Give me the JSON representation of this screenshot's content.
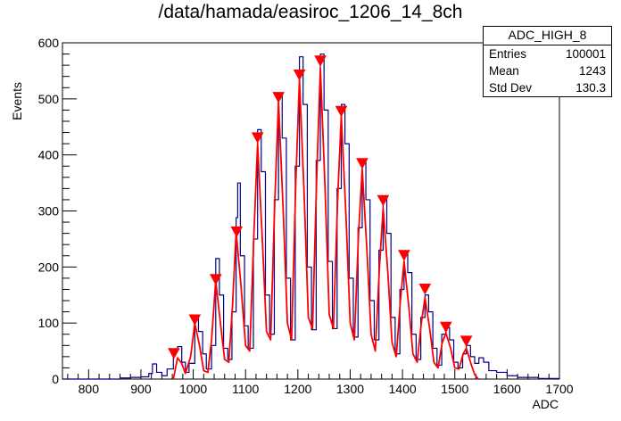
{
  "title": "/data/hamada/easiroc_1206_14_8ch",
  "stats_box": {
    "name": "ADC_HIGH_8",
    "rows": [
      {
        "label": "Entries",
        "value": "100001"
      },
      {
        "label": "Mean",
        "value": "1243"
      },
      {
        "label": "Std Dev",
        "value": "130.3"
      }
    ]
  },
  "chart_data": {
    "type": "line",
    "title": "/data/hamada/easiroc_1206_14_8ch",
    "xlabel": "ADC",
    "ylabel": "Events",
    "xlim": [
      750,
      1700
    ],
    "ylim": [
      0,
      600
    ],
    "x_ticks": [
      800,
      900,
      1000,
      1100,
      1200,
      1300,
      1400,
      1500,
      1600,
      1700
    ],
    "y_ticks": [
      0,
      100,
      200,
      300,
      400,
      500,
      600
    ],
    "legend": "none",
    "grid": false,
    "colors": {
      "histogram": "#000080",
      "fit": "#ff0000",
      "markers": "#ff0000"
    },
    "series": [
      {
        "type": "step",
        "color": "#000080",
        "points": [
          [
            750,
            0
          ],
          [
            840,
            0
          ],
          [
            860,
            2
          ],
          [
            880,
            3
          ],
          [
            900,
            4
          ],
          [
            915,
            10
          ],
          [
            922,
            27
          ],
          [
            930,
            12
          ],
          [
            940,
            6
          ],
          [
            950,
            18
          ],
          [
            962,
            50
          ],
          [
            970,
            58
          ],
          [
            978,
            30
          ],
          [
            985,
            12
          ],
          [
            992,
            28
          ],
          [
            1003,
            110
          ],
          [
            1010,
            85
          ],
          [
            1018,
            45
          ],
          [
            1025,
            18
          ],
          [
            1035,
            60
          ],
          [
            1043,
            215
          ],
          [
            1050,
            150
          ],
          [
            1058,
            55
          ],
          [
            1066,
            35
          ],
          [
            1074,
            120
          ],
          [
            1082,
            288
          ],
          [
            1085,
            350
          ],
          [
            1090,
            220
          ],
          [
            1098,
            95
          ],
          [
            1105,
            55
          ],
          [
            1115,
            250
          ],
          [
            1123,
            445
          ],
          [
            1130,
            370
          ],
          [
            1138,
            150
          ],
          [
            1146,
            80
          ],
          [
            1155,
            320
          ],
          [
            1163,
            510
          ],
          [
            1170,
            430
          ],
          [
            1178,
            180
          ],
          [
            1186,
            70
          ],
          [
            1195,
            380
          ],
          [
            1203,
            575
          ],
          [
            1210,
            490
          ],
          [
            1218,
            200
          ],
          [
            1226,
            88
          ],
          [
            1235,
            390
          ],
          [
            1243,
            580
          ],
          [
            1250,
            480
          ],
          [
            1258,
            210
          ],
          [
            1266,
            90
          ],
          [
            1275,
            340
          ],
          [
            1283,
            490
          ],
          [
            1290,
            420
          ],
          [
            1298,
            180
          ],
          [
            1306,
            75
          ],
          [
            1315,
            270
          ],
          [
            1323,
            390
          ],
          [
            1330,
            320
          ],
          [
            1338,
            140
          ],
          [
            1346,
            70
          ],
          [
            1355,
            230
          ],
          [
            1363,
            325
          ],
          [
            1370,
            260
          ],
          [
            1378,
            110
          ],
          [
            1386,
            45
          ],
          [
            1395,
            160
          ],
          [
            1403,
            225
          ],
          [
            1410,
            190
          ],
          [
            1418,
            80
          ],
          [
            1426,
            35
          ],
          [
            1435,
            110
          ],
          [
            1443,
            150
          ],
          [
            1450,
            120
          ],
          [
            1458,
            55
          ],
          [
            1466,
            25
          ],
          [
            1475,
            80
          ],
          [
            1483,
            92
          ],
          [
            1490,
            70
          ],
          [
            1498,
            30
          ],
          [
            1506,
            20
          ],
          [
            1515,
            45
          ],
          [
            1522,
            60
          ],
          [
            1530,
            40
          ],
          [
            1538,
            28
          ],
          [
            1546,
            38
          ],
          [
            1555,
            30
          ],
          [
            1565,
            15
          ],
          [
            1580,
            12
          ],
          [
            1600,
            6
          ],
          [
            1620,
            3
          ],
          [
            1660,
            1
          ],
          [
            1700,
            0
          ]
        ]
      },
      {
        "type": "line",
        "color": "#ff0000",
        "points": [
          [
            962,
            0
          ],
          [
            970,
            38
          ],
          [
            978,
            28
          ],
          [
            985,
            10
          ],
          [
            995,
            40
          ],
          [
            1003,
            100
          ],
          [
            1012,
            60
          ],
          [
            1020,
            15
          ],
          [
            1028,
            12
          ],
          [
            1035,
            70
          ],
          [
            1043,
            175
          ],
          [
            1052,
            100
          ],
          [
            1060,
            35
          ],
          [
            1068,
            30
          ],
          [
            1075,
            130
          ],
          [
            1082,
            262
          ],
          [
            1091,
            170
          ],
          [
            1100,
            60
          ],
          [
            1108,
            50
          ],
          [
            1116,
            260
          ],
          [
            1123,
            420
          ],
          [
            1132,
            250
          ],
          [
            1140,
            85
          ],
          [
            1148,
            70
          ],
          [
            1156,
            320
          ],
          [
            1163,
            495
          ],
          [
            1172,
            300
          ],
          [
            1180,
            100
          ],
          [
            1188,
            70
          ],
          [
            1196,
            350
          ],
          [
            1203,
            535
          ],
          [
            1212,
            330
          ],
          [
            1220,
            110
          ],
          [
            1228,
            90
          ],
          [
            1236,
            360
          ],
          [
            1243,
            555
          ],
          [
            1252,
            340
          ],
          [
            1260,
            115
          ],
          [
            1268,
            90
          ],
          [
            1276,
            320
          ],
          [
            1283,
            470
          ],
          [
            1292,
            290
          ],
          [
            1300,
            100
          ],
          [
            1308,
            70
          ],
          [
            1316,
            260
          ],
          [
            1323,
            375
          ],
          [
            1332,
            230
          ],
          [
            1340,
            80
          ],
          [
            1348,
            50
          ],
          [
            1356,
            200
          ],
          [
            1363,
            305
          ],
          [
            1372,
            190
          ],
          [
            1380,
            65
          ],
          [
            1388,
            40
          ],
          [
            1396,
            140
          ],
          [
            1403,
            210
          ],
          [
            1412,
            130
          ],
          [
            1420,
            45
          ],
          [
            1428,
            30
          ],
          [
            1436,
            100
          ],
          [
            1443,
            145
          ],
          [
            1452,
            90
          ],
          [
            1460,
            30
          ],
          [
            1468,
            20
          ],
          [
            1476,
            65
          ],
          [
            1483,
            82
          ],
          [
            1492,
            55
          ],
          [
            1500,
            20
          ],
          [
            1508,
            18
          ],
          [
            1516,
            45
          ],
          [
            1522,
            55
          ],
          [
            1530,
            30
          ],
          [
            1538,
            8
          ],
          [
            1545,
            0
          ]
        ]
      }
    ],
    "peaks": [
      {
        "x": 963,
        "y": 45
      },
      {
        "x": 1003,
        "y": 105
      },
      {
        "x": 1043,
        "y": 177
      },
      {
        "x": 1083,
        "y": 262
      },
      {
        "x": 1123,
        "y": 430
      },
      {
        "x": 1163,
        "y": 502
      },
      {
        "x": 1203,
        "y": 542
      },
      {
        "x": 1243,
        "y": 567
      },
      {
        "x": 1283,
        "y": 477
      },
      {
        "x": 1323,
        "y": 384
      },
      {
        "x": 1363,
        "y": 318
      },
      {
        "x": 1403,
        "y": 220
      },
      {
        "x": 1443,
        "y": 160
      },
      {
        "x": 1483,
        "y": 92
      },
      {
        "x": 1522,
        "y": 67
      }
    ]
  }
}
